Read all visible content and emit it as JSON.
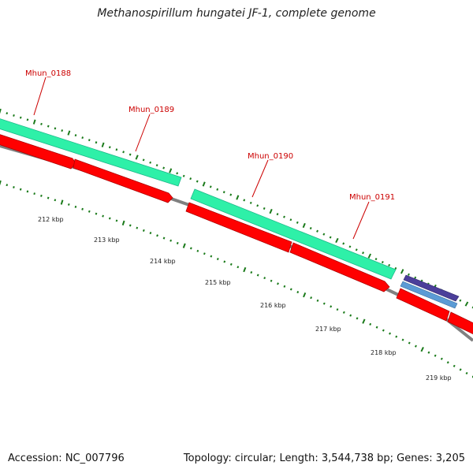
{
  "title": "Methanospirillum hungatei JF-1, complete genome",
  "footer": {
    "accession": "Accession: NC_007796",
    "summary": "Topology: circular; Length: 3,544,738 bp; Genes: 3,205"
  },
  "gene_labels": [
    "Mhun_0188",
    "Mhun_0189",
    "Mhun_0190",
    "Mhun_0191"
  ],
  "kbp_labels": [
    "212 kbp",
    "213 kbp",
    "214 kbp",
    "215 kbp",
    "216 kbp",
    "217 kbp",
    "218 kbp",
    "219 kbp"
  ],
  "colors": {
    "gene_label": "#cc0000",
    "cds_feature": "#2ef0a8",
    "gene_feature": "#ff0000",
    "backbone": "#808080",
    "tick": "#1a7a1a",
    "rna_feature_outer": "#4b3f9a",
    "rna_feature_inner": "#5b9bd5"
  }
}
